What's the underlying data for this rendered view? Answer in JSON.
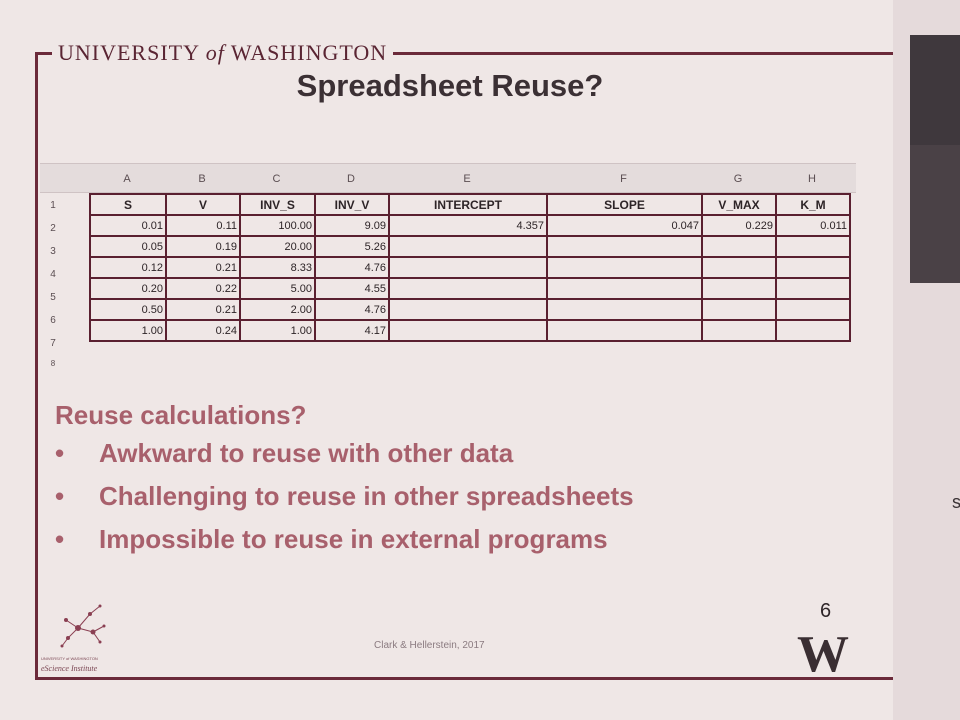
{
  "slide": {
    "institution": "UNIVERSITY of WASHINGTON",
    "institution_pre": "UNIVERSITY ",
    "institution_of": "of",
    "institution_post": " WASHINGTON",
    "title": "Spreadsheet Reuse?",
    "page_number": "6",
    "footer": "Clark & Hellerstein, 2017",
    "logo_text": "eScience Institute",
    "logo_small_text": "UNIVERSITY of WASHINGTON",
    "w_logo": "W"
  },
  "spreadsheet": {
    "column_letters": [
      "A",
      "B",
      "C",
      "D",
      "E",
      "F",
      "G",
      "H"
    ],
    "row_numbers": [
      "1",
      "2",
      "3",
      "4",
      "5",
      "6",
      "7",
      "8"
    ],
    "headers": [
      "S",
      "V",
      "INV_S",
      "INV_V",
      "INTERCEPT",
      "SLOPE",
      "V_MAX",
      "K_M"
    ],
    "rows": [
      [
        "0.01",
        "0.11",
        "100.00",
        "9.09",
        "4.357",
        "0.047",
        "0.229",
        "0.011"
      ],
      [
        "0.05",
        "0.19",
        "20.00",
        "5.26",
        "",
        "",
        "",
        ""
      ],
      [
        "0.12",
        "0.21",
        "8.33",
        "4.76",
        "",
        "",
        "",
        ""
      ],
      [
        "0.20",
        "0.22",
        "5.00",
        "4.55",
        "",
        "",
        "",
        ""
      ],
      [
        "0.50",
        "0.21",
        "2.00",
        "4.76",
        "",
        "",
        "",
        ""
      ],
      [
        "1.00",
        "0.24",
        "1.00",
        "4.17",
        "",
        "",
        "",
        ""
      ]
    ]
  },
  "bullets": {
    "heading": "Reuse calculations?",
    "bullet_symbol": "•",
    "items": [
      "Awkward to reuse with other data",
      "Challenging to reuse in other spreadsheets",
      "Impossible to reuse in external programs"
    ]
  },
  "colors": {
    "accent": "#6b2a3a",
    "bullet_text": "#a8606c",
    "slide_bg": "#efe7e6"
  }
}
